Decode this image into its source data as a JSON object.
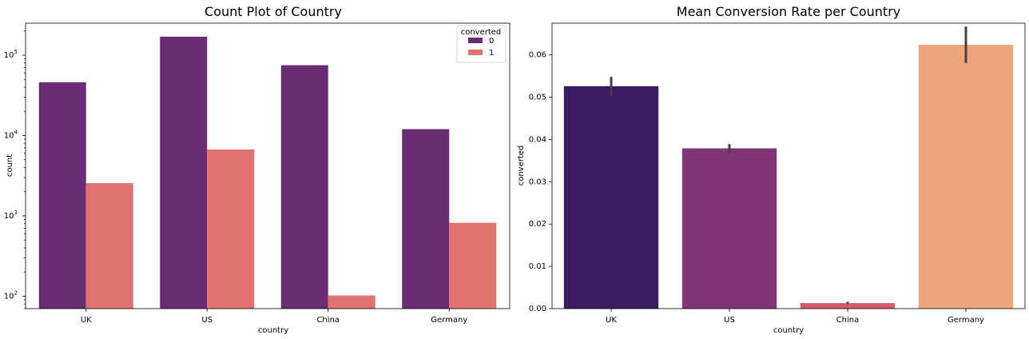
{
  "chart_data": [
    {
      "type": "bar",
      "title": "Count Plot of Country",
      "xlabel": "country",
      "ylabel": "count",
      "yscale": "log",
      "ylim": [
        70,
        250000
      ],
      "categories": [
        "UK",
        "US",
        "China",
        "Germany"
      ],
      "ytick_labels": [
        {
          "value": 100,
          "base": "10",
          "exp": "2"
        },
        {
          "value": 1000,
          "base": "10",
          "exp": "3"
        },
        {
          "value": 10000,
          "base": "10",
          "exp": "4"
        },
        {
          "value": 100000,
          "base": "10",
          "exp": "5"
        }
      ],
      "legend": {
        "title": "converted",
        "position": "top-right"
      },
      "series": [
        {
          "name": "0",
          "color": "#6a2c75",
          "values": [
            46000,
            170000,
            75000,
            12000
          ]
        },
        {
          "name": "1",
          "color": "#e07270",
          "values": [
            2550,
            6700,
            102,
            820
          ]
        }
      ]
    },
    {
      "type": "bar",
      "title": "Mean Conversion Rate per Country",
      "xlabel": "country",
      "ylabel": "converted",
      "ylim": [
        0,
        0.0675
      ],
      "categories": [
        "UK",
        "US",
        "China",
        "Germany"
      ],
      "yticks": [
        "0.00",
        "0.01",
        "0.02",
        "0.03",
        "0.04",
        "0.05",
        "0.06"
      ],
      "values": [
        0.0526,
        0.0379,
        0.0013,
        0.0624
      ],
      "errors": [
        [
          0.0504,
          0.0548
        ],
        [
          0.0369,
          0.0389
        ],
        [
          0.0011,
          0.0016
        ],
        [
          0.0581,
          0.0667
        ]
      ],
      "colors": [
        "#3b1a62",
        "#803676",
        "#d45a6e",
        "#eda57b"
      ],
      "error_color": "#424242"
    }
  ]
}
